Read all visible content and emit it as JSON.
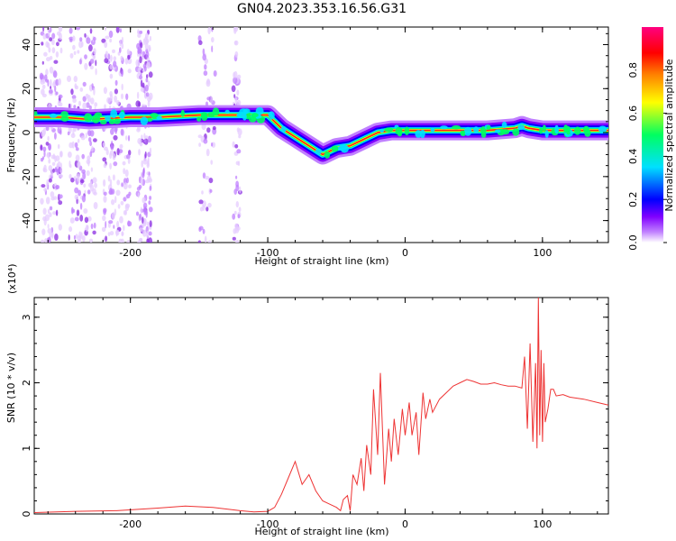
{
  "title": "GN04.2023.353.16.56.G31",
  "chart_data": [
    {
      "type": "heatmap",
      "xlabel": "Height of straight line (km)",
      "ylabel": "Frequency (Hz)",
      "xlim": [
        -270,
        148
      ],
      "ylim": [
        -50,
        48
      ],
      "x_ticks": [
        -200,
        -100,
        0,
        100
      ],
      "x_tick_labels": [
        "-200",
        "-100",
        "0",
        "100"
      ],
      "y_ticks": [
        -40,
        -20,
        0,
        20,
        40
      ],
      "y_tick_labels": [
        "-40",
        "-20",
        "0",
        "20",
        "40"
      ],
      "colorbar": {
        "label": "Normalized spectral amplitude",
        "range": [
          0,
          1
        ],
        "ticks": [
          0.0,
          0.2,
          0.4,
          0.6,
          0.8
        ],
        "tick_labels": [
          "0.0",
          "0.2",
          "0.4",
          "0.6",
          "0.8"
        ],
        "colors": [
          "#ffffff",
          "#c080ff",
          "#8000ff",
          "#0000ff",
          "#00e0ff",
          "#00ff60",
          "#ffff00",
          "#ff8000",
          "#ff0000",
          "#ff0080"
        ]
      },
      "ridge": {
        "x": [
          -270,
          -250,
          -230,
          -200,
          -180,
          -150,
          -120,
          -100,
          -90,
          -80,
          -70,
          -60,
          -50,
          -40,
          -30,
          -20,
          -10,
          0,
          20,
          40,
          60,
          80,
          85,
          90,
          100,
          110,
          120,
          148
        ],
        "y": [
          7,
          7,
          6,
          7,
          7,
          8,
          8,
          8,
          2,
          -2,
          -6,
          -10,
          -7,
          -6,
          -3,
          0,
          1,
          1,
          1,
          1,
          1,
          2,
          3,
          2,
          1,
          1,
          1,
          1
        ]
      },
      "grid": false
    },
    {
      "type": "line",
      "xlabel": "Height of straight line (km)",
      "ylabel": "SNR (10 * v/v)",
      "y_multiplier_label": "(x10⁴)",
      "xlim": [
        -270,
        148
      ],
      "ylim": [
        0,
        3.3
      ],
      "x_ticks": [
        -200,
        -100,
        0,
        100
      ],
      "x_tick_labels": [
        "-200",
        "-100",
        "0",
        "100"
      ],
      "y_ticks": [
        0,
        1,
        2,
        3
      ],
      "y_tick_labels": [
        "0",
        "1",
        "2",
        "3"
      ],
      "series": [
        {
          "color": "#ee3333",
          "x": [
            -270,
            -240,
            -210,
            -180,
            -160,
            -140,
            -120,
            -110,
            -100,
            -95,
            -90,
            -85,
            -80,
            -75,
            -70,
            -65,
            -60,
            -55,
            -50,
            -47,
            -45,
            -42,
            -40,
            -38,
            -35,
            -32,
            -30,
            -28,
            -25,
            -23,
            -20,
            -18,
            -15,
            -12,
            -10,
            -8,
            -5,
            -2,
            0,
            3,
            5,
            8,
            10,
            13,
            15,
            18,
            20,
            25,
            30,
            35,
            40,
            45,
            50,
            55,
            60,
            65,
            70,
            75,
            80,
            85,
            87,
            89,
            91,
            93,
            95,
            96,
            97,
            98,
            99,
            100,
            101,
            102,
            104,
            106,
            108,
            110,
            115,
            120,
            130,
            140,
            148
          ],
          "y": [
            0.02,
            0.04,
            0.05,
            0.09,
            0.12,
            0.1,
            0.05,
            0.03,
            0.04,
            0.1,
            0.3,
            0.55,
            0.8,
            0.45,
            0.6,
            0.35,
            0.2,
            0.15,
            0.1,
            0.05,
            0.22,
            0.28,
            0.05,
            0.6,
            0.45,
            0.85,
            0.35,
            1.05,
            0.6,
            1.9,
            0.9,
            2.15,
            0.45,
            1.3,
            0.8,
            1.45,
            0.9,
            1.6,
            1.2,
            1.7,
            1.2,
            1.55,
            0.9,
            1.85,
            1.45,
            1.75,
            1.55,
            1.75,
            1.85,
            1.95,
            2.0,
            2.05,
            2.02,
            1.98,
            1.98,
            2.0,
            1.97,
            1.95,
            1.95,
            1.92,
            2.4,
            1.3,
            2.6,
            1.1,
            2.3,
            1.0,
            3.3,
            1.2,
            2.5,
            1.1,
            2.3,
            1.4,
            1.6,
            1.9,
            1.9,
            1.8,
            1.82,
            1.78,
            1.75,
            1.7,
            1.66
          ]
        }
      ],
      "grid": false
    }
  ]
}
